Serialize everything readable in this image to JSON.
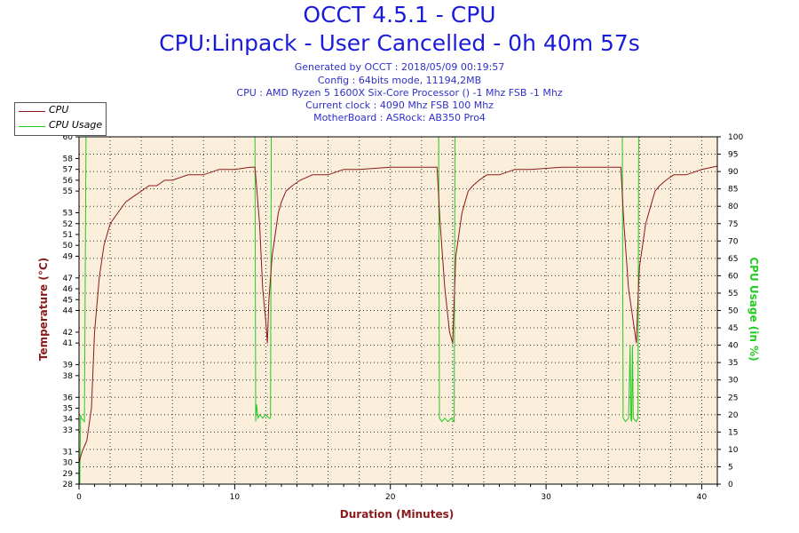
{
  "header": {
    "title": "OCCT 4.5.1 - CPU",
    "subtitle": "CPU:Linpack - User Cancelled - 0h 40m 57s",
    "info": [
      "Generated by OCCT : 2018/05/09 00:19:57",
      "Config : 64bits mode, 11194,2MB",
      "CPU : AMD Ryzen 5 1600X Six-Core Processor () -1 Mhz FSB -1 Mhz",
      "Current clock : 4090 Mhz FSB 100 Mhz",
      "MotherBoard : ASRock: AB350 Pro4"
    ]
  },
  "colors": {
    "cpu": "#8b1a1a",
    "usage": "#22cc22",
    "plot_bg": "#fbeedb",
    "title": "#1a1adb"
  },
  "chart_data": {
    "type": "line",
    "title": "OCCT 4.5.1 - CPU",
    "xlabel": "Duration (Minutes)",
    "ylabel": "Temperature (°C)",
    "y2label": "CPU Usage (in %)",
    "xlim": [
      0,
      41
    ],
    "ylim": [
      28,
      60
    ],
    "y2lim": [
      0,
      100
    ],
    "x_ticks": [
      0,
      10,
      20,
      30,
      40
    ],
    "y_ticks": [
      28,
      29,
      30,
      31,
      33,
      34,
      35,
      36,
      38,
      39,
      41,
      42,
      44,
      45,
      46,
      47,
      49,
      50,
      51,
      52,
      53,
      55,
      56,
      57,
      58,
      60
    ],
    "y2_ticks": [
      0,
      5,
      10,
      15,
      20,
      25,
      30,
      35,
      40,
      45,
      50,
      55,
      60,
      65,
      70,
      75,
      80,
      85,
      90,
      95,
      100
    ],
    "grid": true,
    "legend": [
      "CPU",
      "CPU Usage"
    ],
    "series": [
      {
        "name": "CPU",
        "axis": "left",
        "x": [
          0,
          0.2,
          0.5,
          0.8,
          1.0,
          1.3,
          1.6,
          2.0,
          2.5,
          3.0,
          3.5,
          4.0,
          4.5,
          5.0,
          5.5,
          6.0,
          7.0,
          8.0,
          9.0,
          10.0,
          11.0,
          11.3,
          11.6,
          11.8,
          12.0,
          12.1,
          12.2,
          12.4,
          12.6,
          12.8,
          13.0,
          13.3,
          13.7,
          14.2,
          15.0,
          16.0,
          17.0,
          18.0,
          20.0,
          22.0,
          23.0,
          23.2,
          23.5,
          23.8,
          24.0,
          24.1,
          24.2,
          24.4,
          24.6,
          24.8,
          25.0,
          25.3,
          25.7,
          26.2,
          27.0,
          28.0,
          29.0,
          31.0,
          33.0,
          34.8,
          35.0,
          35.3,
          35.6,
          35.8,
          35.9,
          36.0,
          36.2,
          36.4,
          36.6,
          36.8,
          37.0,
          37.3,
          37.7,
          38.2,
          39.0,
          40.0,
          41.0
        ],
        "values": [
          30,
          31,
          32,
          35,
          42,
          47,
          50,
          52,
          53,
          54,
          54.5,
          55,
          55.5,
          55.5,
          56,
          56,
          56.5,
          56.5,
          57,
          57,
          57.2,
          57.2,
          52,
          46,
          43,
          41,
          45,
          49,
          51,
          53,
          54,
          55,
          55.5,
          56,
          56.5,
          56.5,
          57,
          57,
          57.2,
          57.2,
          57.2,
          52,
          46,
          42,
          41,
          45,
          49,
          51,
          53,
          54,
          55,
          55.5,
          56,
          56.5,
          56.5,
          57,
          57,
          57.2,
          57.2,
          57.2,
          52,
          46,
          43,
          41,
          45,
          48,
          50,
          52,
          53,
          54,
          55,
          55.5,
          56,
          56.5,
          56.5,
          57,
          57.3
        ]
      },
      {
        "name": "CPU Usage",
        "axis": "right",
        "x": [
          0,
          0.05,
          0.1,
          0.15,
          0.35,
          0.45,
          0.5,
          11.3,
          11.35,
          11.4,
          11.5,
          11.6,
          11.8,
          12.0,
          12.2,
          12.3,
          12.35,
          23.1,
          23.15,
          23.3,
          23.5,
          23.7,
          23.9,
          24.1,
          24.15,
          34.9,
          34.95,
          35.1,
          35.3,
          35.4,
          35.45,
          35.5,
          35.55,
          35.6,
          35.8,
          35.9,
          35.95,
          41
        ],
        "values": [
          0,
          0,
          20,
          19,
          18,
          100,
          100,
          100,
          18,
          23,
          19,
          20,
          19,
          20,
          19,
          19,
          100,
          100,
          19,
          18,
          19,
          18,
          19,
          18,
          100,
          100,
          19,
          18,
          19,
          40,
          19,
          18,
          40,
          19,
          18,
          19,
          100,
          100
        ]
      }
    ]
  }
}
